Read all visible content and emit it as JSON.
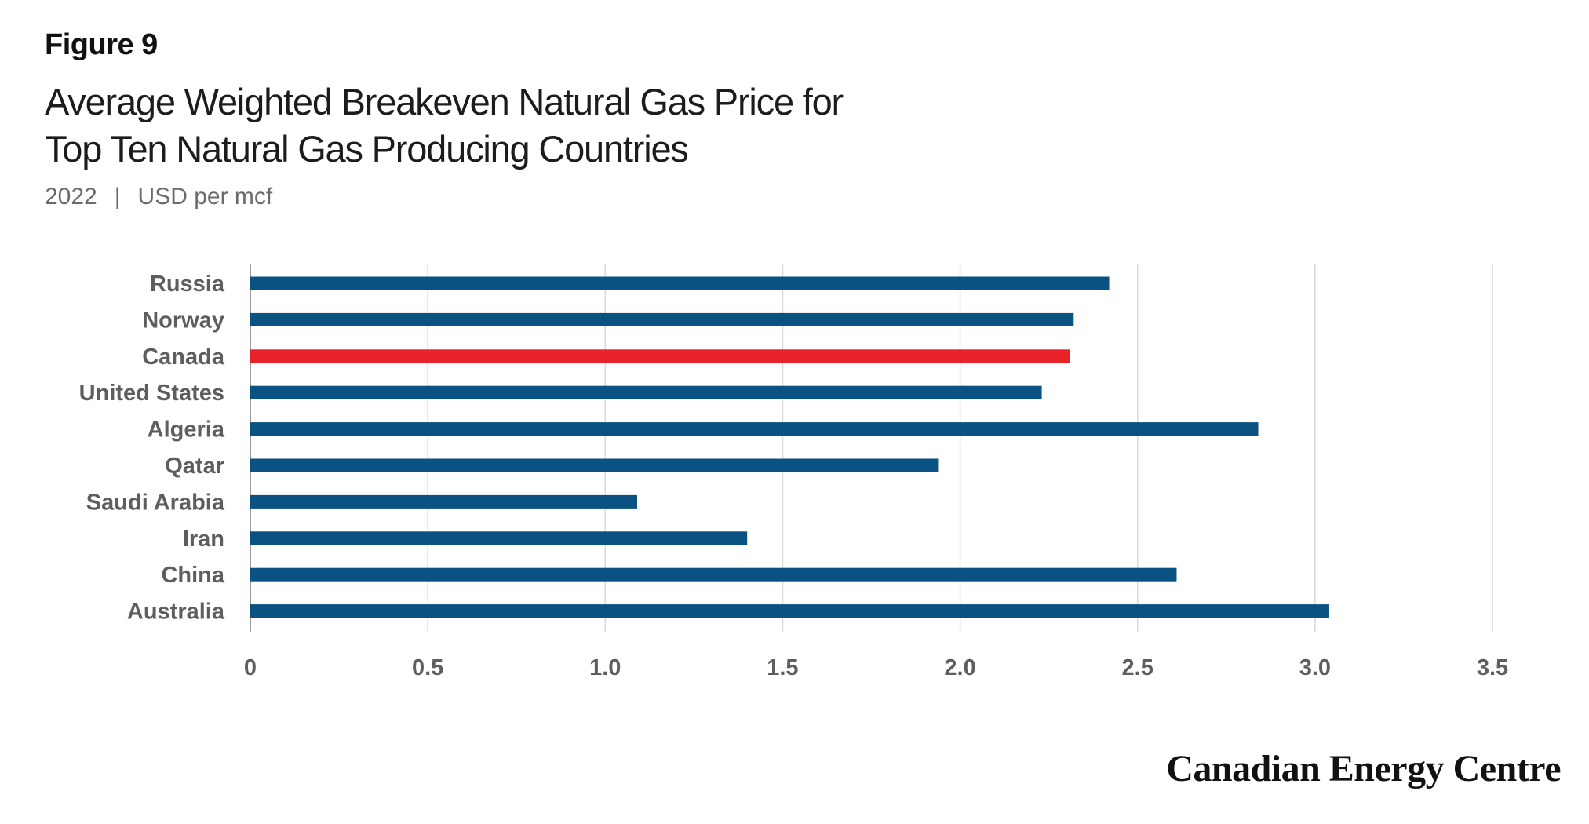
{
  "figure_label": "Figure 9",
  "title_lines": [
    "Average Weighted Breakeven  Natural Gas Price for",
    "Top Ten Natural Gas Producing Countries"
  ],
  "subtitle": {
    "year": "2022",
    "separator": "|",
    "unit": "USD per mcf"
  },
  "source_logo": "Canadian Energy Centre",
  "colors": {
    "bar": "#0a5282",
    "highlight": "#e8232a",
    "grid": "#d9d9d9",
    "axis": "#9a9a9a"
  },
  "chart_data": {
    "type": "bar",
    "orientation": "horizontal",
    "categories": [
      "Russia",
      "Norway",
      "Canada",
      "United States",
      "Algeria",
      "Qatar",
      "Saudi Arabia",
      "Iran",
      "China",
      "Australia"
    ],
    "values": [
      2.42,
      2.32,
      2.31,
      2.23,
      2.84,
      1.94,
      1.09,
      1.4,
      2.61,
      3.04
    ],
    "highlight_category": "Canada",
    "xlim": [
      0,
      3.5
    ],
    "xticks": [
      0,
      0.5,
      1.0,
      1.5,
      2.0,
      2.5,
      3.0,
      3.5
    ],
    "xtick_labels": [
      "0",
      "0.5",
      "1.0",
      "1.5",
      "2.0",
      "2.5",
      "3.0",
      "3.5"
    ],
    "grid": true,
    "xlabel": "",
    "ylabel": ""
  }
}
